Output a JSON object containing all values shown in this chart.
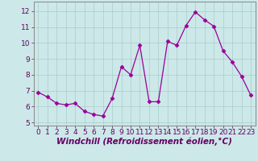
{
  "x": [
    0,
    1,
    2,
    3,
    4,
    5,
    6,
    7,
    8,
    9,
    10,
    11,
    12,
    13,
    14,
    15,
    16,
    17,
    18,
    19,
    20,
    21,
    22,
    23
  ],
  "y": [
    6.9,
    6.6,
    6.2,
    6.1,
    6.2,
    5.7,
    5.5,
    5.4,
    6.5,
    8.5,
    8.0,
    9.85,
    6.3,
    6.3,
    10.1,
    9.85,
    11.1,
    11.95,
    11.45,
    11.05,
    9.5,
    8.8,
    7.9,
    6.7
  ],
  "line_color": "#990099",
  "marker": "D",
  "marker_size": 2.5,
  "bg_color": "#cce8e8",
  "grid_color": "#aacccc",
  "xlabel": "Windchill (Refroidissement éolien,°C)",
  "xlim": [
    -0.5,
    23.5
  ],
  "ylim": [
    4.8,
    12.6
  ],
  "yticks": [
    5,
    6,
    7,
    8,
    9,
    10,
    11,
    12
  ],
  "xticks": [
    0,
    1,
    2,
    3,
    4,
    5,
    6,
    7,
    8,
    9,
    10,
    11,
    12,
    13,
    14,
    15,
    16,
    17,
    18,
    19,
    20,
    21,
    22,
    23
  ],
  "tick_fontsize": 6.5,
  "xlabel_fontsize": 7.5,
  "xlabel_fontweight": "bold"
}
